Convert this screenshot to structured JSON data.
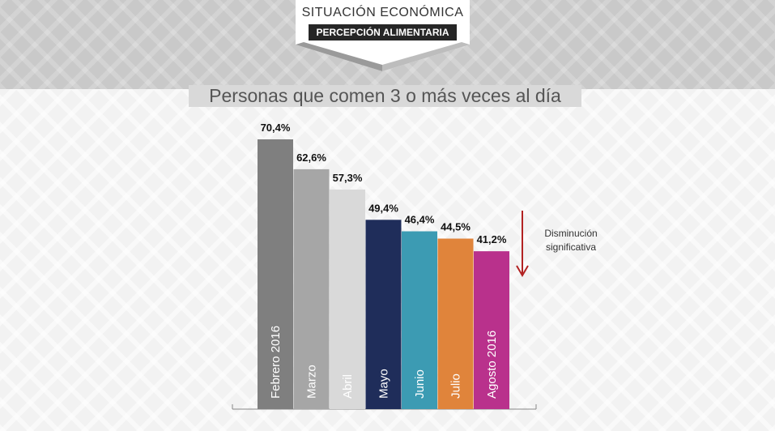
{
  "header": {
    "line1": "SITUACIÓN ECONÓMICA",
    "line2": "PERCEPCIÓN ALIMENTARIA"
  },
  "chart_data": {
    "type": "bar",
    "title": "Personas que comen 3 o más veces al día",
    "categories": [
      "Febrero 2016",
      "Marzo",
      "Abril",
      "Mayo",
      "Junio",
      "Julio",
      "Agosto 2016"
    ],
    "values": [
      70.4,
      62.6,
      57.3,
      49.4,
      46.4,
      44.5,
      41.2
    ],
    "value_labels": [
      "70,4%",
      "62,6%",
      "57,3%",
      "49,4%",
      "46,4%",
      "44,5%",
      "41,2%"
    ],
    "colors": [
      "#7f7f7f",
      "#a6a6a6",
      "#d9d9d9",
      "#1f2d5a",
      "#3c9bb3",
      "#e0843b",
      "#b9318c"
    ],
    "unit": "%",
    "grid": false,
    "annotation": {
      "line1": "Disminución",
      "line2": "significativa",
      "arrow": "down",
      "arrow_color": "#b22222"
    }
  }
}
